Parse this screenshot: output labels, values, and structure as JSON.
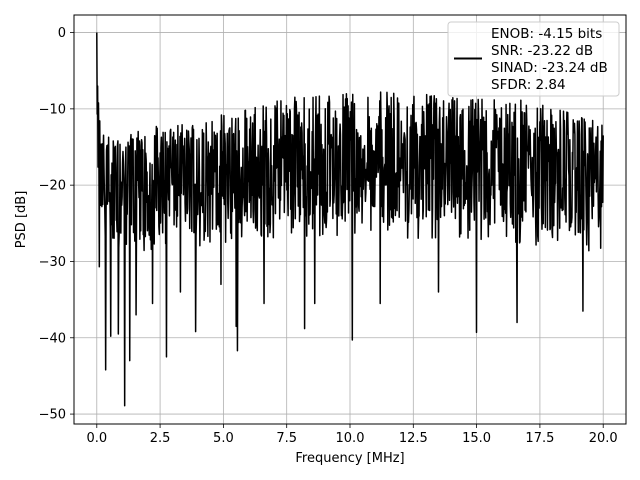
{
  "chart_data": {
    "type": "line",
    "title": "",
    "xlabel": "Frequency [MHz]",
    "ylabel": "PSD [dB]",
    "xlim": [
      -0.9,
      20.9
    ],
    "ylim": [
      -51.3,
      2.3
    ],
    "grid": true,
    "xticks": [
      0.0,
      2.5,
      5.0,
      7.5,
      10.0,
      12.5,
      15.0,
      17.5,
      20.0
    ],
    "xtick_labels": [
      "0.0",
      "2.5",
      "5.0",
      "7.5",
      "10.0",
      "12.5",
      "15.0",
      "17.5",
      "20.0"
    ],
    "yticks": [
      0,
      -10,
      -20,
      -30,
      -40,
      -50
    ],
    "ytick_labels": [
      "0",
      "−10",
      "−20",
      "−30",
      "−40",
      "−50"
    ],
    "legend": {
      "placement": "top-right",
      "entries": [
        "ENOB: -4.15 bits",
        "SNR: -23.22 dB",
        "SINAD: -23.24 dB",
        "SFDR: 2.84"
      ]
    },
    "series": [
      {
        "color": "#000000",
        "x_range_mhz": [
          0,
          20
        ],
        "peak": {
          "x": 0.0,
          "y": 0.0
        },
        "envelope": {
          "x": [
            0.0,
            0.1,
            0.5,
            1.0,
            2.5,
            5.0,
            7.5,
            10.0,
            12.5,
            15.0,
            17.5,
            20.0
          ],
          "upper": [
            0.0,
            -10.5,
            -13.5,
            -13.0,
            -12.0,
            -10.5,
            -8.5,
            -7.5,
            -8.0,
            -8.5,
            -9.0,
            -12.0
          ],
          "median": [
            -16.0,
            -18.0,
            -19.5,
            -19.5,
            -19.0,
            -18.5,
            -17.5,
            -17.0,
            -17.5,
            -18.0,
            -18.5,
            -19.0
          ],
          "lower": [
            -20.0,
            -25.0,
            -27.0,
            -27.0,
            -26.5,
            -26.0,
            -25.0,
            -24.5,
            -25.0,
            -25.5,
            -26.0,
            -27.0
          ]
        },
        "dips": [
          {
            "x": 0.1,
            "y": -30.7
          },
          {
            "x": 0.35,
            "y": -44.2
          },
          {
            "x": 0.55,
            "y": -39.8
          },
          {
            "x": 0.85,
            "y": -39.5
          },
          {
            "x": 1.1,
            "y": -48.9
          },
          {
            "x": 1.3,
            "y": -43.0
          },
          {
            "x": 1.55,
            "y": -37.0
          },
          {
            "x": 2.2,
            "y": -35.5
          },
          {
            "x": 2.75,
            "y": -42.5
          },
          {
            "x": 3.3,
            "y": -34.0
          },
          {
            "x": 3.9,
            "y": -39.2
          },
          {
            "x": 4.9,
            "y": -33.0
          },
          {
            "x": 5.55,
            "y": -41.7
          },
          {
            "x": 5.5,
            "y": -38.5
          },
          {
            "x": 6.6,
            "y": -35.5
          },
          {
            "x": 8.2,
            "y": -38.8
          },
          {
            "x": 8.6,
            "y": -35.5
          },
          {
            "x": 10.1,
            "y": -40.3
          },
          {
            "x": 11.2,
            "y": -35.5
          },
          {
            "x": 13.5,
            "y": -34.0
          },
          {
            "x": 15.0,
            "y": -39.3
          },
          {
            "x": 16.6,
            "y": -38.0
          },
          {
            "x": 19.2,
            "y": -36.5
          }
        ],
        "sample_count": 1200
      }
    ]
  }
}
